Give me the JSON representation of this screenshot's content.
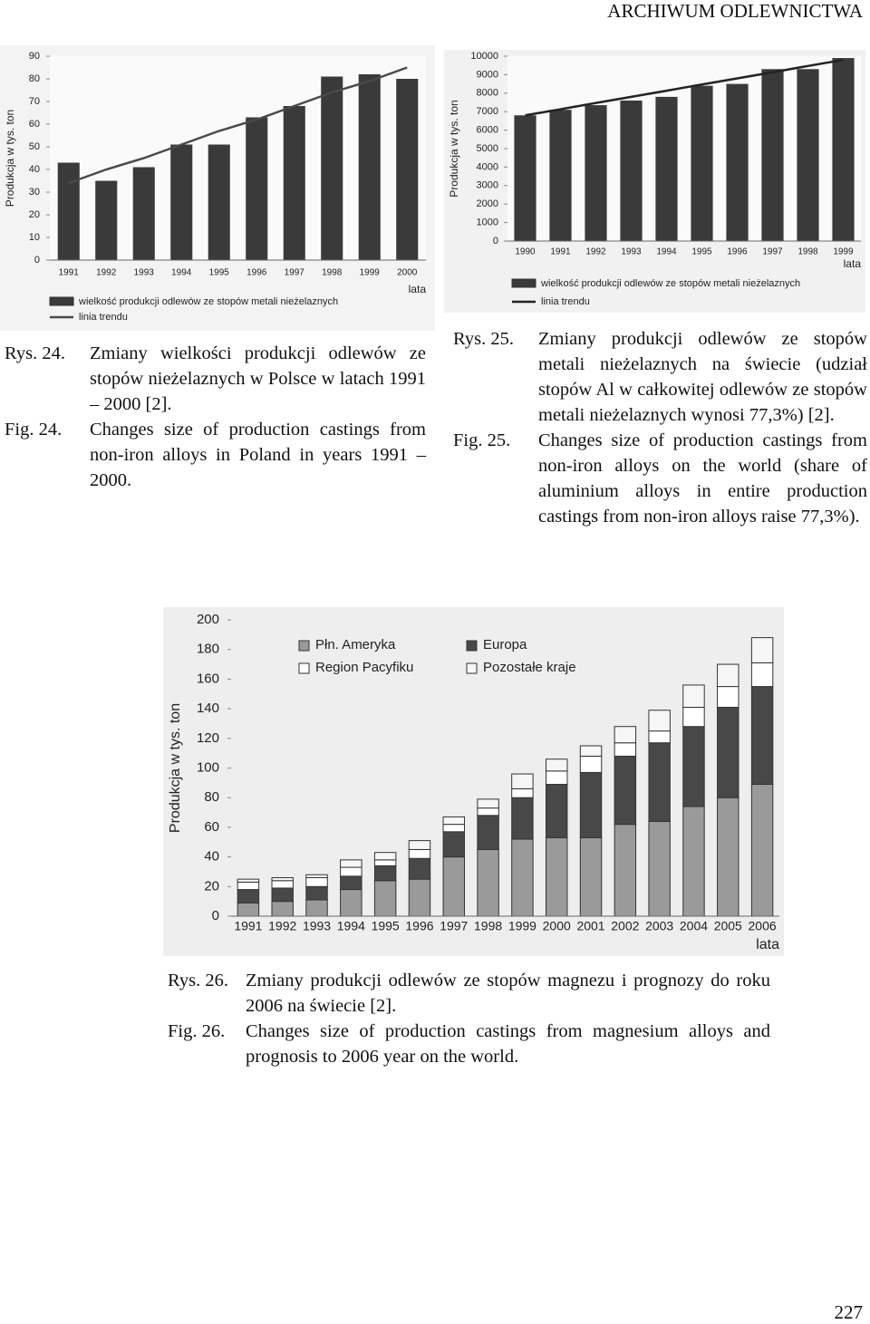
{
  "header": {
    "title": "ARCHIWUM  ODLEWNICTWA"
  },
  "chart_data": [
    {
      "type": "bar",
      "y_label": "Produkcja w tys. ton",
      "x_label": "lata",
      "categories": [
        "1991",
        "1992",
        "1993",
        "1994",
        "1995",
        "1996",
        "1997",
        "1998",
        "1999",
        "2000"
      ],
      "series": [
        {
          "name": "wielkość produkcji odlewów ze stopów metali nieżelaznych",
          "color": "#3a3a3a",
          "values": [
            43,
            35,
            41,
            51,
            51,
            63,
            68,
            81,
            82,
            80
          ]
        },
        {
          "name": "linia trendu",
          "type": "line",
          "color": "#4a4a4a",
          "values": [
            34,
            40,
            45,
            51,
            57,
            62,
            68,
            74,
            79,
            85
          ]
        }
      ],
      "ylim": [
        0,
        90
      ],
      "yticks": [
        0,
        10,
        20,
        30,
        40,
        50,
        60,
        70,
        80,
        90
      ]
    },
    {
      "type": "bar",
      "y_label": "Produkcja w tys. ton",
      "x_label": "lata",
      "categories": [
        "1990",
        "1991",
        "1992",
        "1993",
        "1994",
        "1995",
        "1996",
        "1997",
        "1998",
        "1999"
      ],
      "series": [
        {
          "name": "wielkość produkcji odlewów ze stopów metali nieżelaznych",
          "color": "#3a3a3a",
          "values": [
            6800,
            7100,
            7350,
            7600,
            7800,
            8400,
            8500,
            9300,
            9300,
            9900
          ]
        },
        {
          "name": "linia trendu",
          "type": "line",
          "color": "#222222",
          "values": [
            6800,
            7130,
            7470,
            7800,
            8130,
            8470,
            8800,
            9130,
            9470,
            9800
          ]
        }
      ],
      "ylim": [
        0,
        10000
      ],
      "yticks": [
        0,
        1000,
        2000,
        3000,
        4000,
        5000,
        6000,
        7000,
        8000,
        9000,
        10000
      ]
    },
    {
      "type": "stacked_bar",
      "y_label": "Produkcja w tys. ton",
      "x_label": "lata",
      "categories": [
        "1991",
        "1992",
        "1993",
        "1994",
        "1995",
        "1996",
        "1997",
        "1998",
        "1999",
        "2000",
        "2001",
        "2002",
        "2003",
        "2004",
        "2005",
        "2006"
      ],
      "series": [
        {
          "name": "Płn. Ameryka",
          "color": "#9a9a9a",
          "values": [
            9,
            10,
            11,
            18,
            24,
            25,
            40,
            45,
            52,
            53,
            53,
            62,
            64,
            74,
            80,
            89
          ]
        },
        {
          "name": "Europa",
          "color": "#484848",
          "values": [
            9,
            9,
            9,
            9,
            10,
            14,
            17,
            23,
            28,
            36,
            44,
            46,
            53,
            54,
            61,
            66
          ]
        },
        {
          "name": "Region Pacyfiku",
          "color": "#ffffff",
          "values": [
            5,
            5,
            6,
            6,
            4,
            6,
            5,
            5,
            6,
            9,
            11,
            9,
            8,
            13,
            14,
            16
          ]
        },
        {
          "name": "Pozostałe kraje",
          "color": "#f6f6f6",
          "values": [
            2,
            2,
            2,
            5,
            5,
            6,
            5,
            6,
            10,
            8,
            7,
            11,
            14,
            15,
            15,
            17
          ]
        }
      ],
      "ylim": [
        0,
        200
      ],
      "yticks": [
        0,
        20,
        40,
        60,
        80,
        100,
        120,
        140,
        160,
        180,
        200
      ]
    }
  ],
  "captions": [
    {
      "pl_label": "Rys. 24.",
      "pl_text": "Zmiany wielkości produkcji odlewów ze stopów nieżelaznych w Polsce w latach 1991 – 2000 [2].",
      "en_label": "Fig. 24.",
      "en_text": "Changes size of production castings from non-iron alloys in Poland in years 1991 – 2000."
    },
    {
      "pl_label": "Rys. 25.",
      "pl_text": "Zmiany produkcji odlewów ze stopów metali nieżelaznych na świecie (udział stopów Al w całkowitej odlewów ze stopów metali nieżelaznych wynosi 77,3%) [2].",
      "en_label": "Fig. 25.",
      "en_text": "Changes size of production castings from non-iron alloys on the world (share of aluminium alloys in entire production castings from non-iron alloys raise 77,3%)."
    },
    {
      "pl_label": "Rys. 26.",
      "pl_text": "Zmiany produkcji odlewów ze stopów magnezu i prognozy do roku 2006 na świecie [2].",
      "en_label": "Fig. 26.",
      "en_text": "Changes size of production castings from magnesium alloys and prognosis to 2006 year on the world."
    }
  ],
  "page_number": "227"
}
